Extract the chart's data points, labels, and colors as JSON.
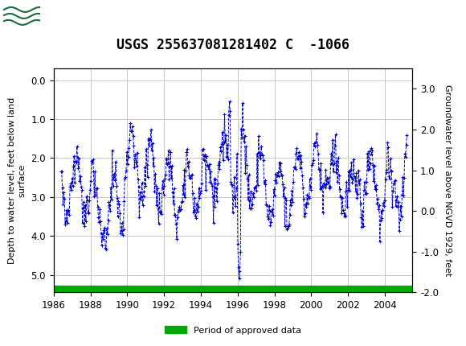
{
  "title": "USGS 255637081281402 C  -1066",
  "ylabel_left": "Depth to water level, feet below land\nsurface",
  "ylabel_right": "Groundwater level above NGVD 1929, feet",
  "xlim": [
    1986.0,
    2005.5
  ],
  "ylim_left": [
    5.45,
    -0.3
  ],
  "ylim_right": [
    -2.0,
    3.5
  ],
  "xticks": [
    1986,
    1988,
    1990,
    1992,
    1994,
    1996,
    1998,
    2000,
    2002,
    2004
  ],
  "yticks_left": [
    0.0,
    1.0,
    2.0,
    3.0,
    4.0,
    5.0
  ],
  "yticks_right": [
    3.0,
    2.0,
    1.0,
    0.0,
    -1.0,
    -2.0
  ],
  "header_color": "#1b6b3a",
  "data_color": "#0000cc",
  "approved_color": "#00aa00",
  "legend_label": "Period of approved data",
  "background_color": "#ffffff",
  "plot_bg_color": "#ffffff",
  "grid_color": "#c8c8c8",
  "title_fontsize": 12,
  "label_fontsize": 8,
  "tick_fontsize": 8.5,
  "approved_y": 5.35
}
